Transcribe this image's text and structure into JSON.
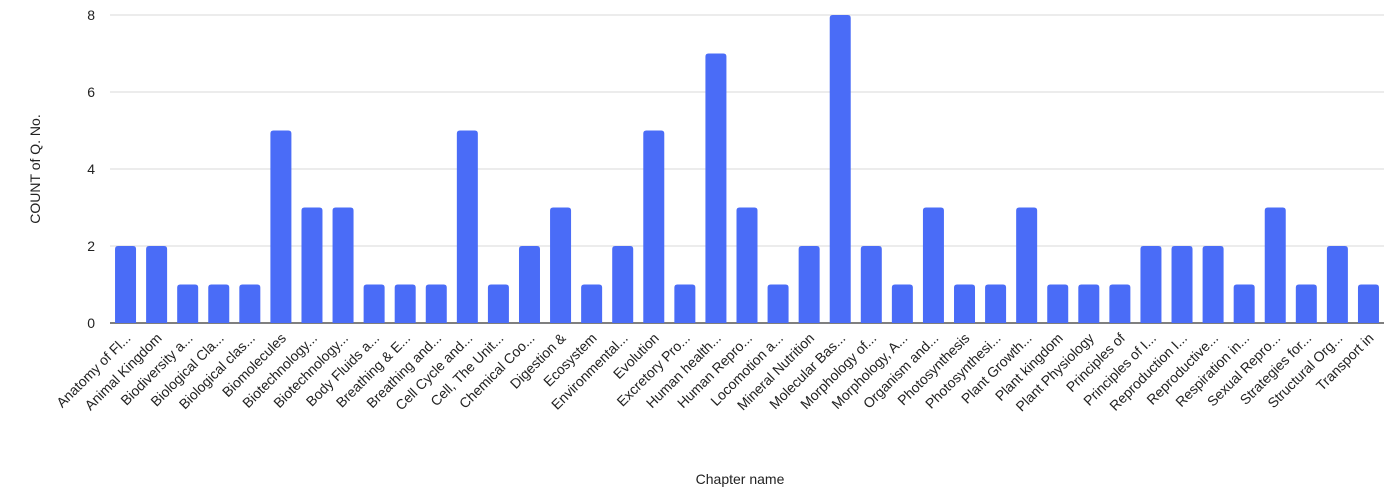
{
  "chart_data": {
    "type": "bar",
    "title": "",
    "xlabel": "Chapter name",
    "ylabel": "COUNT of Q. No.",
    "ylim": [
      0,
      8
    ],
    "yticks": [
      0,
      2,
      4,
      6,
      8
    ],
    "grid": true,
    "legend": "none",
    "bar_color": "#4a6cf7",
    "categories": [
      "Anatomy of Fl...",
      "Animal Kingdom",
      "Biodiversity a...",
      "Biological Cla...",
      "Biological clas...",
      "Biomolecules",
      "Biotechnology...",
      "Biotechnology...",
      "Body Fluids a...",
      "Breathing & E...",
      "Breathing and...",
      "Cell Cycle and...",
      "Cell, The Unit...",
      "Chemical Coo...",
      "Digestion &",
      "Ecosystem",
      "Environmental...",
      "Evolution",
      "Excretory Pro...",
      "Human health...",
      "Human Repro...",
      "Locomotion a...",
      "Mineral Nutrition",
      "Molecular Bas...",
      "Morphology of...",
      "Morphology, A...",
      "Organism and...",
      "Photosynthesis",
      "Photosynthesi...",
      "Plant Growth...",
      "Plant kingdom",
      "Plant Physiology",
      "Principles of",
      "Principles of I...",
      "Reproduction I...",
      "Reproductive...",
      "Respiration in...",
      "Sexual Repro...",
      "Strategies for...",
      "Structural Org...",
      "Transport in"
    ],
    "values": [
      2,
      2,
      1,
      1,
      1,
      5,
      3,
      3,
      1,
      1,
      1,
      5,
      1,
      2,
      3,
      1,
      2,
      5,
      1,
      7,
      3,
      1,
      2,
      8,
      2,
      1,
      3,
      1,
      1,
      3,
      1,
      1,
      1,
      2,
      2,
      2,
      1,
      3,
      1,
      2,
      1
    ]
  }
}
